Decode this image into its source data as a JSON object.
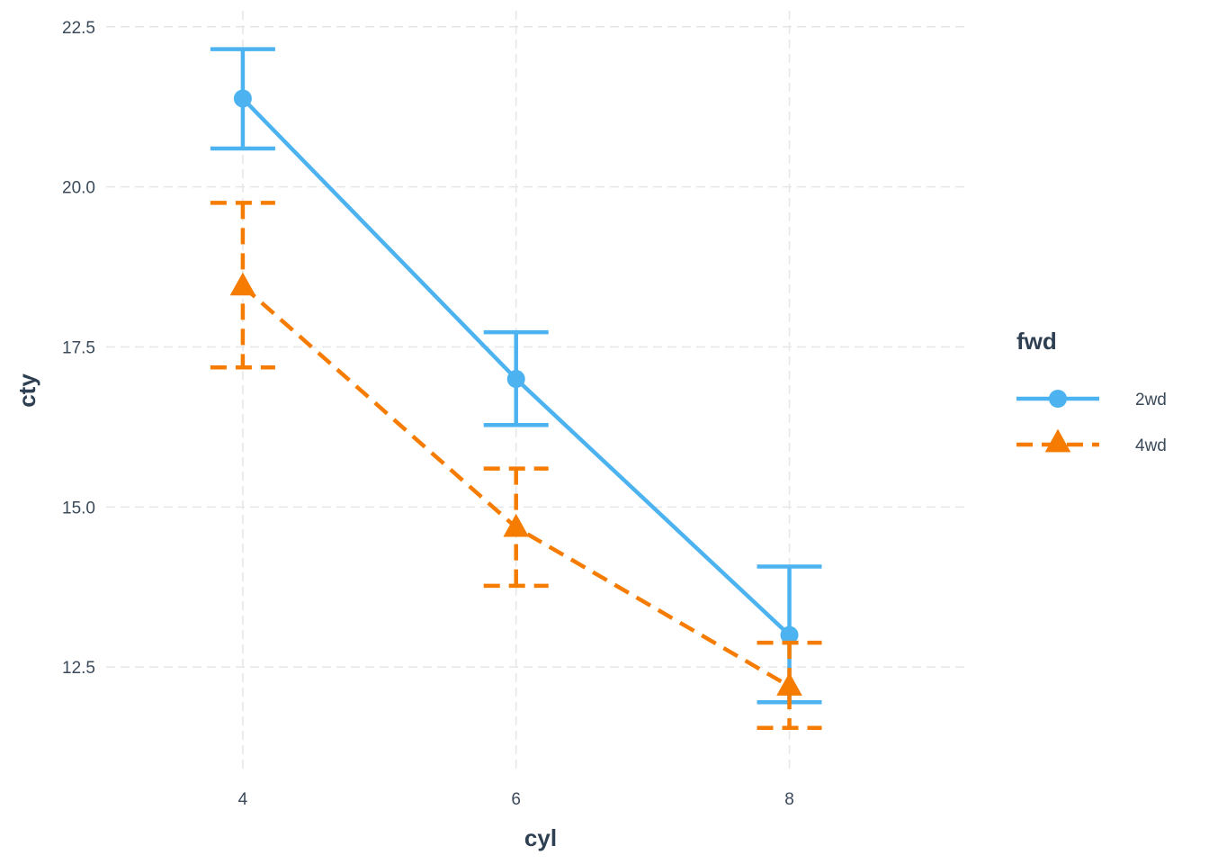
{
  "chart_data": {
    "type": "line",
    "xlabel": "cyl",
    "ylabel": "cty",
    "x": [
      4,
      6,
      8
    ],
    "xlim": [
      3,
      9.3
    ],
    "ylim": [
      10.9,
      22.75
    ],
    "xticks": [
      4,
      6,
      8
    ],
    "yticks": [
      12.5,
      15.0,
      17.5,
      20.0,
      22.5
    ],
    "ytick_labels": [
      "12.5",
      "15.0",
      "17.5",
      "20.0",
      "22.5"
    ],
    "grid": "on",
    "error_bars": true,
    "legend": {
      "title": "fwd",
      "placement": "right"
    },
    "series": [
      {
        "name": "2wd",
        "color": "#4db3f0",
        "linestyle": "solid",
        "marker": "circle",
        "values": [
          21.38,
          17.0,
          13.0
        ],
        "lower": [
          20.6,
          16.28,
          11.95
        ],
        "upper": [
          22.15,
          17.73,
          14.07
        ]
      },
      {
        "name": "4wd",
        "color": "#f57c00",
        "linestyle": "dashed",
        "marker": "triangle",
        "values": [
          18.45,
          14.68,
          12.2
        ],
        "lower": [
          17.18,
          13.77,
          11.55
        ],
        "upper": [
          19.75,
          15.6,
          12.88
        ]
      }
    ]
  }
}
